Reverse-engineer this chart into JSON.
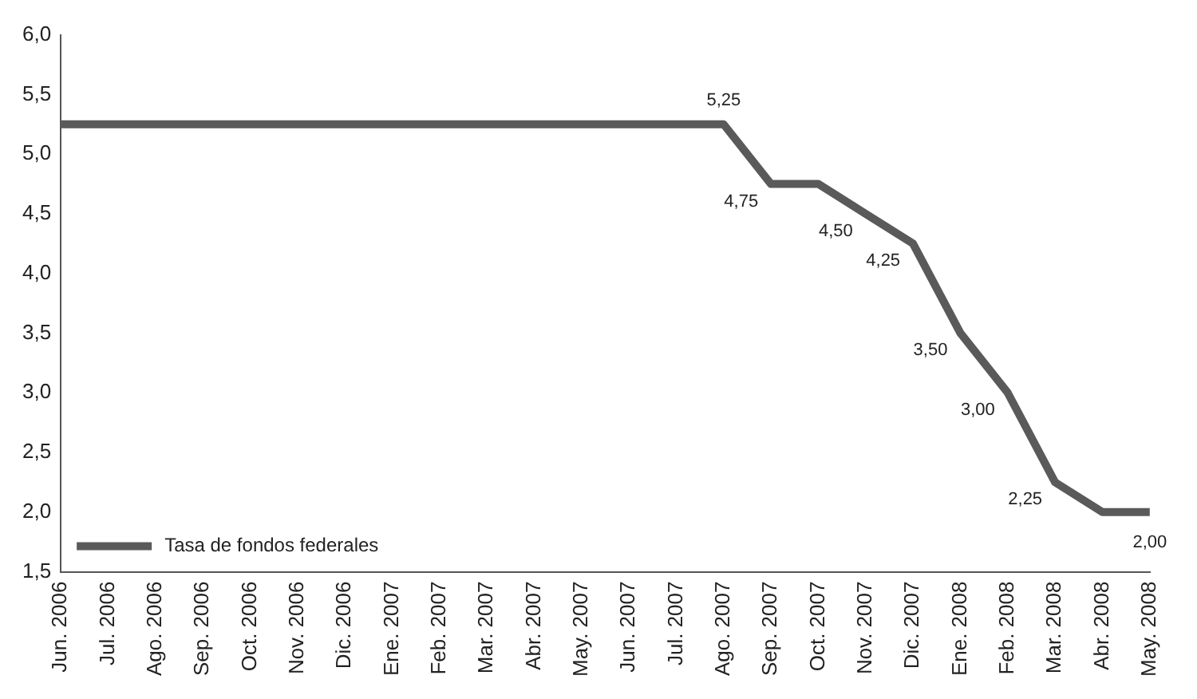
{
  "chart_data": {
    "type": "line",
    "categories": [
      "Jun. 2006",
      "Jul. 2006",
      "Ago. 2006",
      "Sep. 2006",
      "Oct. 2006",
      "Nov. 2006",
      "Dic. 2006",
      "Ene. 2007",
      "Feb. 2007",
      "Mar. 2007",
      "Abr. 2007",
      "May. 2007",
      "Jun. 2007",
      "Jul. 2007",
      "Ago. 2007",
      "Sep. 2007",
      "Oct. 2007",
      "Nov. 2007",
      "Dic. 2007",
      "Ene. 2008",
      "Feb. 2008",
      "Mar. 2008",
      "Abr. 2008",
      "May. 2008"
    ],
    "series": [
      {
        "name": "Tasa de fondos federales",
        "color": "#5a5a5a",
        "values": [
          5.25,
          5.25,
          5.25,
          5.25,
          5.25,
          5.25,
          5.25,
          5.25,
          5.25,
          5.25,
          5.25,
          5.25,
          5.25,
          5.25,
          5.25,
          4.75,
          4.75,
          4.5,
          4.25,
          3.5,
          3.0,
          2.25,
          2.0,
          2.0
        ],
        "value_labels": [
          null,
          null,
          null,
          null,
          null,
          null,
          null,
          null,
          null,
          null,
          null,
          null,
          null,
          null,
          "5,25",
          "4,75",
          null,
          "4,50",
          "4,25",
          "3,50",
          "3,00",
          "2,25",
          null,
          "2,00"
        ]
      }
    ],
    "ylim": [
      1.5,
      6.0
    ],
    "yticks": [
      {
        "value": 1.5,
        "label": "1,5"
      },
      {
        "value": 2.0,
        "label": "2,0"
      },
      {
        "value": 2.5,
        "label": "2,5"
      },
      {
        "value": 3.0,
        "label": "3,0"
      },
      {
        "value": 3.5,
        "label": "3,5"
      },
      {
        "value": 4.0,
        "label": "4,0"
      },
      {
        "value": 4.5,
        "label": "4,5"
      },
      {
        "value": 5.0,
        "label": "5,0"
      },
      {
        "value": 5.5,
        "label": "5,5"
      },
      {
        "value": 6.0,
        "label": "6,0"
      }
    ],
    "grid": false,
    "legend": "bottom left",
    "marker": "none",
    "line_style": "solid"
  }
}
